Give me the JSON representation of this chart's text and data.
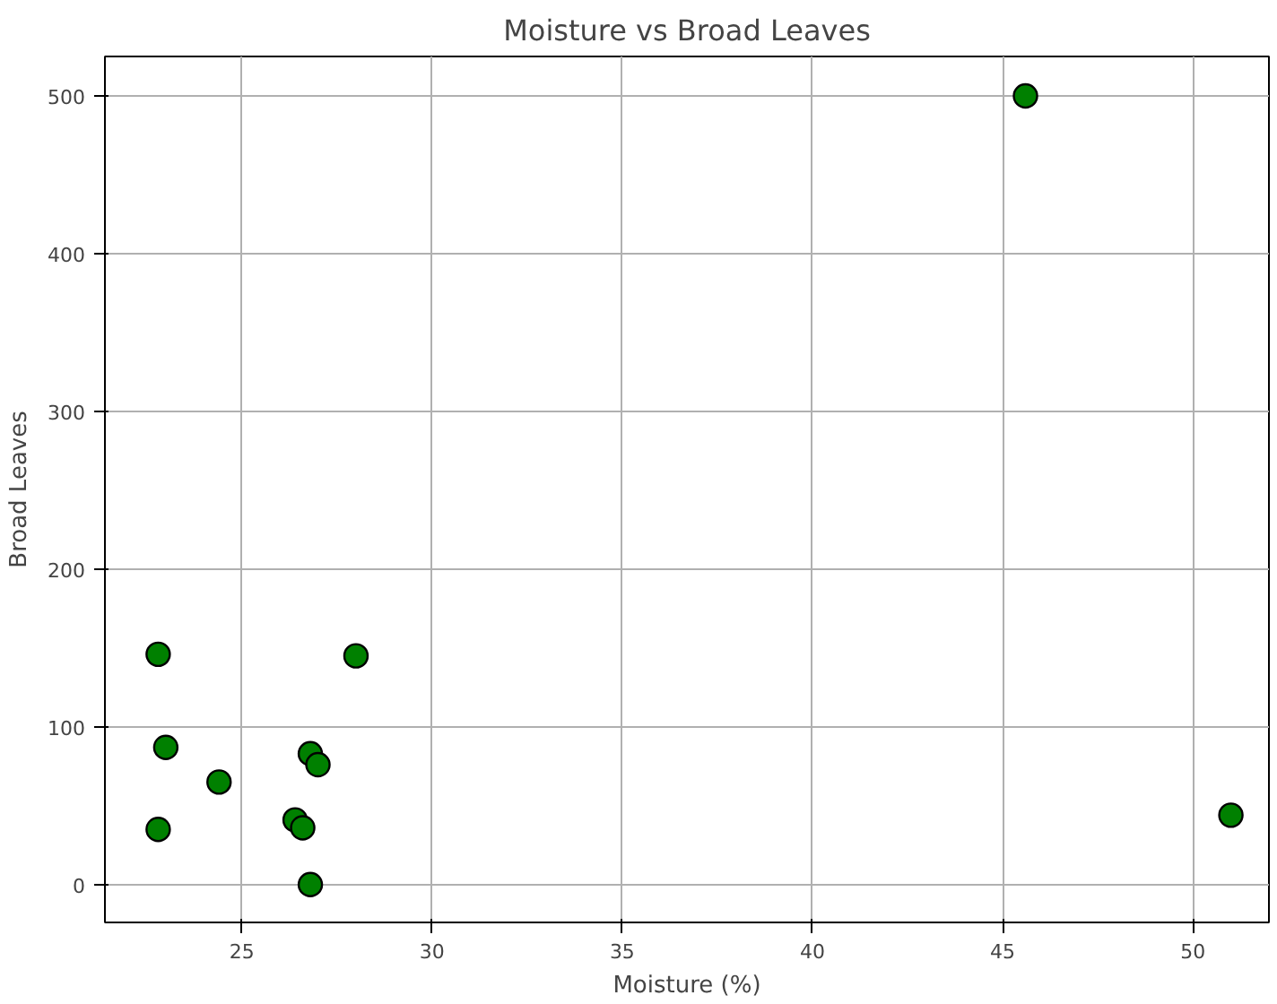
{
  "chart_data": {
    "type": "scatter",
    "title": "Moisture vs Broad Leaves",
    "xlabel": "Moisture (%)",
    "ylabel": "Broad Leaves",
    "x": [
      22.8,
      23.0,
      24.4,
      22.8,
      28.0,
      26.8,
      27.0,
      26.4,
      26.6,
      26.8,
      45.6,
      51.0
    ],
    "series": [
      {
        "color": "#008000",
        "values": [
          146,
          87,
          65,
          35,
          145,
          83,
          76,
          41,
          36,
          0,
          500,
          44
        ]
      }
    ],
    "xlim": [
      21.4,
      52.0
    ],
    "ylim": [
      -24,
      525
    ],
    "xticks": [
      25,
      30,
      35,
      40,
      45,
      50
    ],
    "yticks": [
      0,
      100,
      200,
      300,
      400,
      500
    ],
    "grid": true,
    "marker": "circle"
  }
}
